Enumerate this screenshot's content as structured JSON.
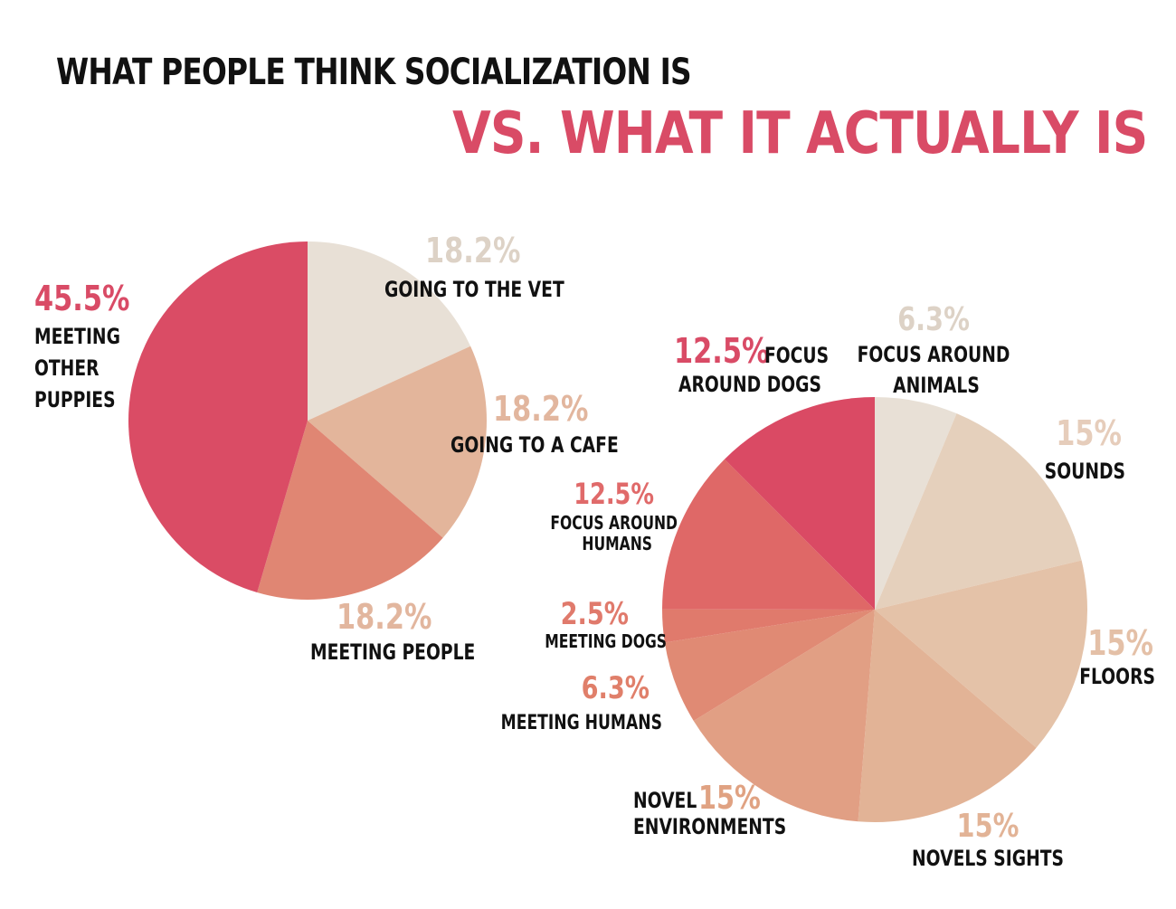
{
  "titles": {
    "line1": "WHAT PEOPLE THINK SOCIALIZATION IS",
    "line2": "VS. WHAT IT ACTUALLY IS"
  },
  "colors": {
    "title_dark": "#111111",
    "title_accent": "#d94b66"
  },
  "chart_data": [
    {
      "type": "pie",
      "slices": [
        {
          "label": "GOING TO THE VET",
          "value": 18.2,
          "value_text": "18.2%",
          "color": "#e8e0d6",
          "label_color": "#ddd2c6"
        },
        {
          "label": "GOING TO A CAFE",
          "value": 18.2,
          "value_text": "18.2%",
          "color": "#e3b59b",
          "label_color": "#e2b69e"
        },
        {
          "label": "MEETING PEOPLE",
          "value": 18.2,
          "value_text": "18.2%",
          "color": "#e08673",
          "label_color": "#e2b69e"
        },
        {
          "label": "MEETING OTHER PUPPIES",
          "value": 45.5,
          "value_text": "45.5%",
          "color": "#da4c65",
          "label_color": "#d94b66"
        }
      ]
    },
    {
      "type": "pie",
      "slices": [
        {
          "label": "FOCUS AROUND ANIMALS",
          "value": 6.3,
          "value_text": "6.3%",
          "color": "#e8e0d6",
          "label_color": "#ddd2c6"
        },
        {
          "label": "SOUNDS",
          "value": 15,
          "value_text": "15%",
          "color": "#e5d0bc",
          "label_color": "#e6cdbb"
        },
        {
          "label": "FLOORS",
          "value": 15,
          "value_text": "15%",
          "color": "#e4c2a8",
          "label_color": "#e4c0a7"
        },
        {
          "label": "NOVELS SIGHTS",
          "value": 15,
          "value_text": "15%",
          "color": "#e2b396",
          "label_color": "#e2b396"
        },
        {
          "label": "NOVEL ENVIRONMENTS",
          "value": 15,
          "value_text": "15%",
          "color": "#e19f84",
          "label_color": "#e0a282"
        },
        {
          "label": "MEETING HUMANS",
          "value": 6.3,
          "value_text": "6.3%",
          "color": "#e08a74",
          "label_color": "#e07f6a"
        },
        {
          "label": "MEETING DOGS",
          "value": 2.5,
          "value_text": "2.5%",
          "color": "#e07a6c",
          "label_color": "#e07a6c"
        },
        {
          "label": "FOCUS AROUND HUMANS",
          "value": 12.5,
          "value_text": "12.5%",
          "color": "#df6867",
          "label_color": "#e06a6a"
        },
        {
          "label": "FOCUS AROUND DOGS",
          "value": 12.5,
          "value_text": "12.5%",
          "color": "#da4a64",
          "label_color": "#d94b66"
        }
      ]
    }
  ]
}
